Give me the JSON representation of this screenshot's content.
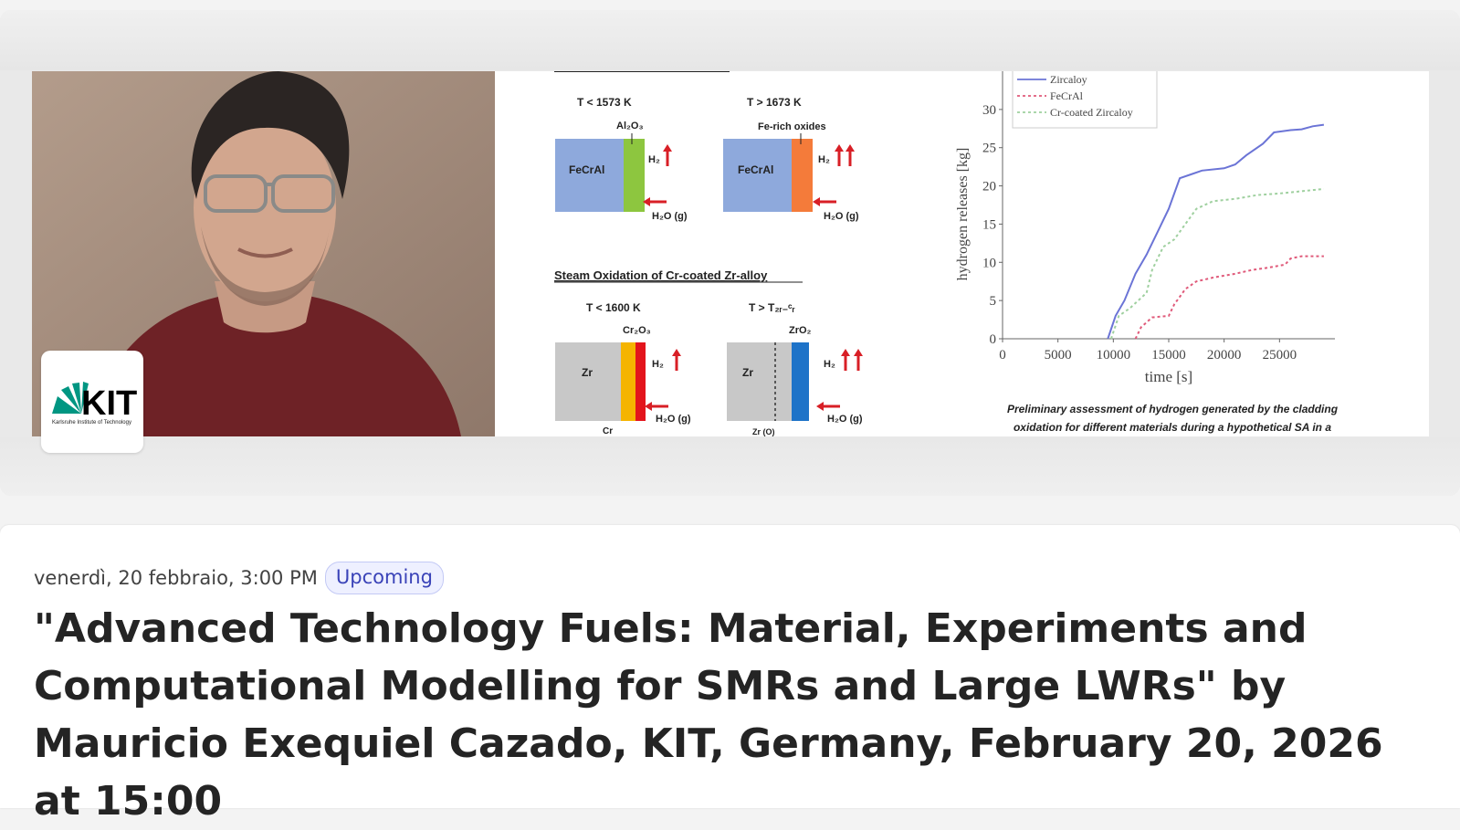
{
  "banner": {
    "figure": {
      "left_panel": {
        "oxidation_heading": "Steam Oxidation of Cr-coated Zr-alloy",
        "top_left": {
          "temp": "T < 1573 K",
          "oxide": "Al₂O₃",
          "material": "FeCrAl",
          "h2": "H₂",
          "h2o": "H₂O (g)"
        },
        "top_right": {
          "temp": "T > 1673 K",
          "oxide": "Fe-rich oxides",
          "material": "FeCrAl",
          "h2": "H₂",
          "h2o": "H₂O (g)"
        },
        "bottom_left": {
          "temp": "T < 1600 K",
          "oxide": "Cr₂O₃",
          "material": "Zr",
          "h2": "H₂",
          "h2o": "H₂O (g)",
          "sublabel": "Cr"
        },
        "bottom_right": {
          "temp": "T > T₂ᵣ₋ᶜᵣ",
          "oxide": "ZrO₂",
          "material": "Zr",
          "h2": "H₂",
          "h2o": "H₂O (g)",
          "sublabel": "Zr (O)"
        }
      },
      "caption_line1": "Preliminary assessment of hydrogen generated by the cladding",
      "caption_line2": "oxidation for different materials during a hypothetical SA in a"
    },
    "logo": {
      "text": "KIT",
      "subtitle": "Karlsruhe Institute of Technology",
      "accent_color": "#009682"
    }
  },
  "event": {
    "date": "venerdì, 20 febbraio, 3:00 PM",
    "status_badge": "Upcoming",
    "title": "\"Advanced Technology Fuels: Material, Experiments and Computational Modelling for SMRs and Large LWRs\" by Mauricio Exequiel Cazado, KIT, Germany, February 20, 2026 at 15:00"
  },
  "chart_data": {
    "type": "line",
    "xlabel": "time [s]",
    "ylabel": "hydrogen releases [kg]",
    "xlim": [
      0,
      30000
    ],
    "ylim": [
      0,
      35
    ],
    "x_ticks": [
      0,
      5000,
      10000,
      15000,
      20000,
      25000
    ],
    "y_ticks": [
      0,
      5,
      10,
      15,
      20,
      25,
      30
    ],
    "legend_placement": "top-left",
    "series": [
      {
        "name": "Zircaloy",
        "color": "#6b74d6",
        "dash": "solid",
        "points": [
          [
            9500,
            0
          ],
          [
            10200,
            3
          ],
          [
            11000,
            5
          ],
          [
            12000,
            8.5
          ],
          [
            13000,
            11
          ],
          [
            14000,
            14
          ],
          [
            15000,
            17
          ],
          [
            16000,
            21
          ],
          [
            17000,
            21.5
          ],
          [
            18000,
            22
          ],
          [
            20000,
            22.3
          ],
          [
            21000,
            22.8
          ],
          [
            22000,
            24
          ],
          [
            23500,
            25.5
          ],
          [
            24500,
            27
          ],
          [
            26000,
            27.3
          ],
          [
            27000,
            27.4
          ],
          [
            28000,
            27.8
          ],
          [
            29000,
            28
          ]
        ]
      },
      {
        "name": "FeCrAl",
        "color": "#e05a7a",
        "dash": "dotted",
        "points": [
          [
            12000,
            0
          ],
          [
            12500,
            1.5
          ],
          [
            13500,
            2.8
          ],
          [
            15000,
            3
          ],
          [
            15500,
            4.5
          ],
          [
            16500,
            6.5
          ],
          [
            17500,
            7.5
          ],
          [
            19000,
            8
          ],
          [
            21000,
            8.5
          ],
          [
            22500,
            9
          ],
          [
            24000,
            9.3
          ],
          [
            25500,
            9.7
          ],
          [
            26000,
            10.5
          ],
          [
            27000,
            10.8
          ],
          [
            29000,
            10.8
          ]
        ]
      },
      {
        "name": "Cr-coated Zircaloy",
        "color": "#9fd09f",
        "dash": "dotted",
        "points": [
          [
            9800,
            0
          ],
          [
            10500,
            3
          ],
          [
            11500,
            4
          ],
          [
            13000,
            6
          ],
          [
            13500,
            9
          ],
          [
            14500,
            12
          ],
          [
            15500,
            13
          ],
          [
            16500,
            15
          ],
          [
            17500,
            17
          ],
          [
            19000,
            18
          ],
          [
            21000,
            18.3
          ],
          [
            23000,
            18.8
          ],
          [
            25000,
            19
          ],
          [
            27000,
            19.3
          ],
          [
            29000,
            19.6
          ]
        ]
      }
    ]
  }
}
